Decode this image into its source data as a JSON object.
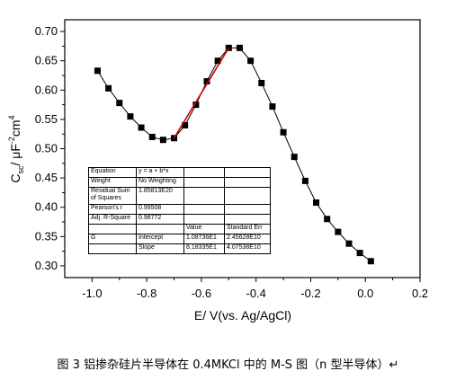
{
  "chart_data": {
    "type": "scatter",
    "xlabel": "E/ V(vs. Ag/AgCl)",
    "ylabel": {
      "base": "C",
      "sub": "sc",
      "mid": "/ μF",
      "sup1": "-2",
      "mid2": "cm",
      "sup2": "4"
    },
    "xlim": [
      -1.1,
      0.2
    ],
    "ylim": [
      0.28,
      0.72
    ],
    "x_ticks": [
      -1.0,
      -0.8,
      -0.6,
      -0.4,
      -0.2,
      0.0,
      0.2
    ],
    "x_tick_labels": [
      "-1.0",
      "-0.8",
      "-0.6",
      "-0.4",
      "-0.2",
      "0.0",
      "0.2"
    ],
    "y_ticks": [
      0.3,
      0.35,
      0.4,
      0.45,
      0.5,
      0.55,
      0.6,
      0.65,
      0.7
    ],
    "y_tick_labels": [
      "0.30",
      "0.35",
      "0.40",
      "0.45",
      "0.50",
      "0.55",
      "0.60",
      "0.65",
      "0.70"
    ],
    "series": [
      {
        "marker": "square",
        "color": "#000000",
        "x": [
          -0.98,
          -0.94,
          -0.9,
          -0.86,
          -0.82,
          -0.78,
          -0.74,
          -0.7,
          -0.66,
          -0.62,
          -0.58,
          -0.54,
          -0.5,
          -0.46,
          -0.42,
          -0.38,
          -0.34,
          -0.3,
          -0.26,
          -0.22,
          -0.18,
          -0.14,
          -0.1,
          -0.06,
          -0.02,
          0.02
        ],
        "y": [
          0.633,
          0.603,
          0.578,
          0.555,
          0.536,
          0.52,
          0.515,
          0.518,
          0.54,
          0.575,
          0.615,
          0.65,
          0.672,
          0.672,
          0.65,
          0.612,
          0.572,
          0.528,
          0.486,
          0.445,
          0.408,
          0.38,
          0.358,
          0.338,
          0.322,
          0.308
        ]
      }
    ],
    "fit_line": {
      "color": "#cc0000",
      "x": [
        -0.7,
        -0.5
      ],
      "y": [
        0.518,
        0.672
      ]
    },
    "fit_table": {
      "rows": [
        [
          "Equation",
          "y = a + b*x",
          "",
          ""
        ],
        [
          "Weight",
          "No Weighting",
          "",
          ""
        ],
        [
          "Residual Sum of Squares",
          "1.85813E20",
          "",
          ""
        ],
        [
          "Pearson's r",
          "0.99508",
          "",
          ""
        ],
        [
          "Adj. R-Square",
          "0.98772",
          "",
          ""
        ],
        [
          "",
          "",
          "Value",
          "Standard Err"
        ],
        [
          "G",
          "Intercept",
          "1.08736E1",
          "2.45628E10"
        ],
        [
          "",
          "Slope",
          "8.18335E1",
          "4.07538E10"
        ]
      ]
    },
    "caption": "图 3  铝掺杂硅片半导体在 0.4MKCl 中的 M-S 图（n 型半导体）↵"
  }
}
